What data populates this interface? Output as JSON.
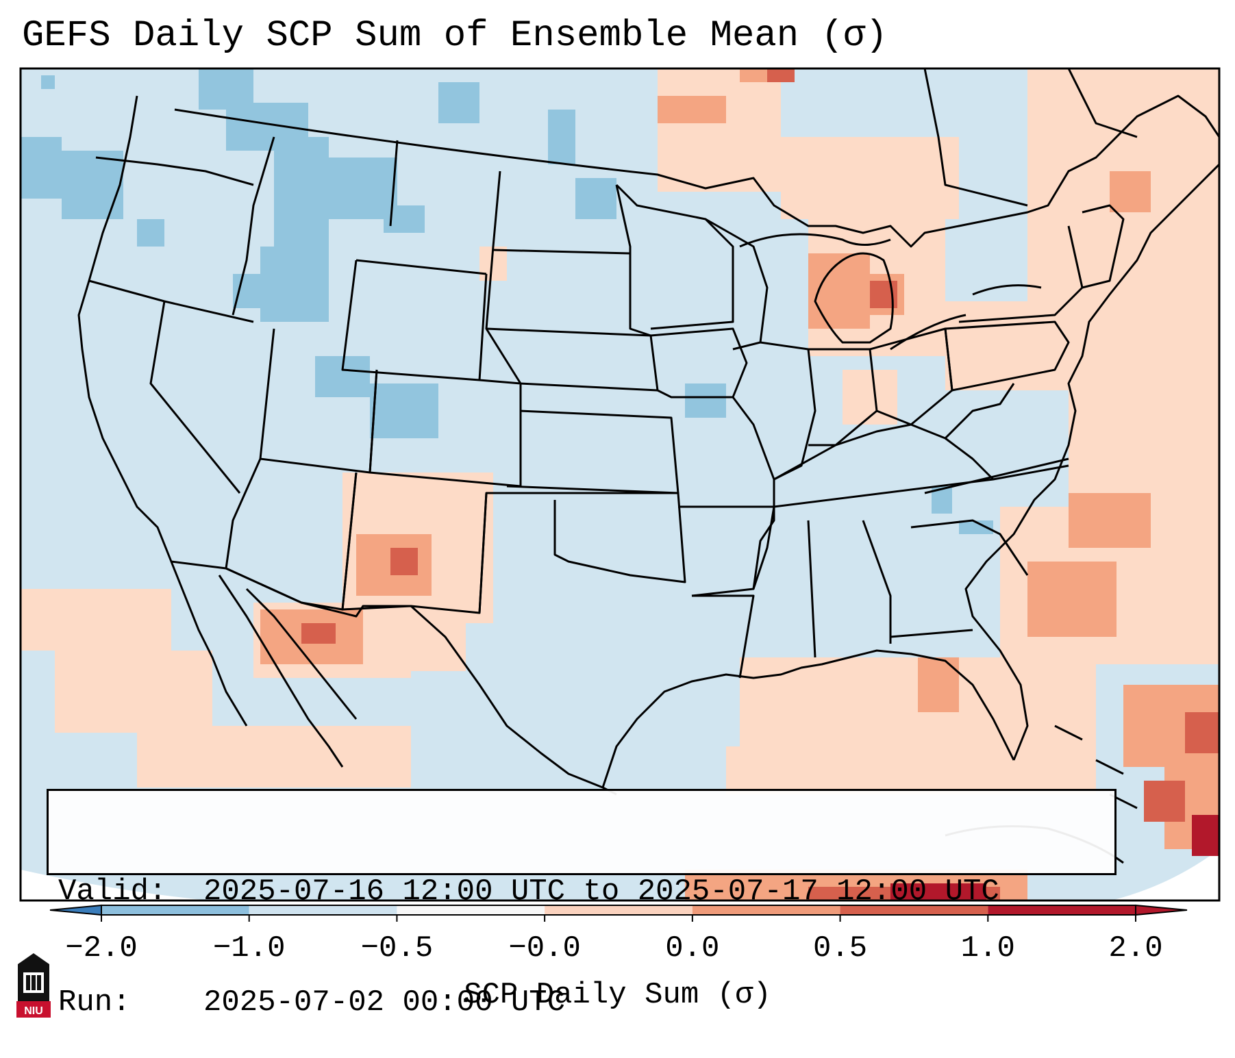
{
  "title": "GEFS Daily SCP Sum of Ensemble Mean (σ)",
  "info": {
    "valid_label": "Valid:",
    "valid_value": "2025-07-16 12:00 UTC to 2025-07-17 12:00 UTC",
    "run_label": "Run:",
    "run_value": "2025-07-02 00:00 UTC"
  },
  "colorbar": {
    "label": "SCP Daily Sum (σ)",
    "ticks": [
      "−2.0",
      "−1.0",
      "−0.5",
      "−0.0",
      "0.0",
      "0.5",
      "1.0",
      "2.0"
    ],
    "colors": [
      "#3a7dbb",
      "#8dbfdd",
      "#cfe3ef",
      "#f7f7f7",
      "#fbd3bf",
      "#ef9b7a",
      "#d6604d",
      "#b2182b"
    ]
  },
  "logo": {
    "text": "NIU",
    "color": "#c8102e"
  },
  "map": {
    "background_color": "#d1e5f0",
    "field_colors": {
      "light_blue": "#d1e5f0",
      "blue": "#92c5de",
      "light_red": "#fddbc7",
      "red": "#f4a582",
      "dark_red": "#d6604d",
      "deep_red": "#b2182b"
    }
  }
}
